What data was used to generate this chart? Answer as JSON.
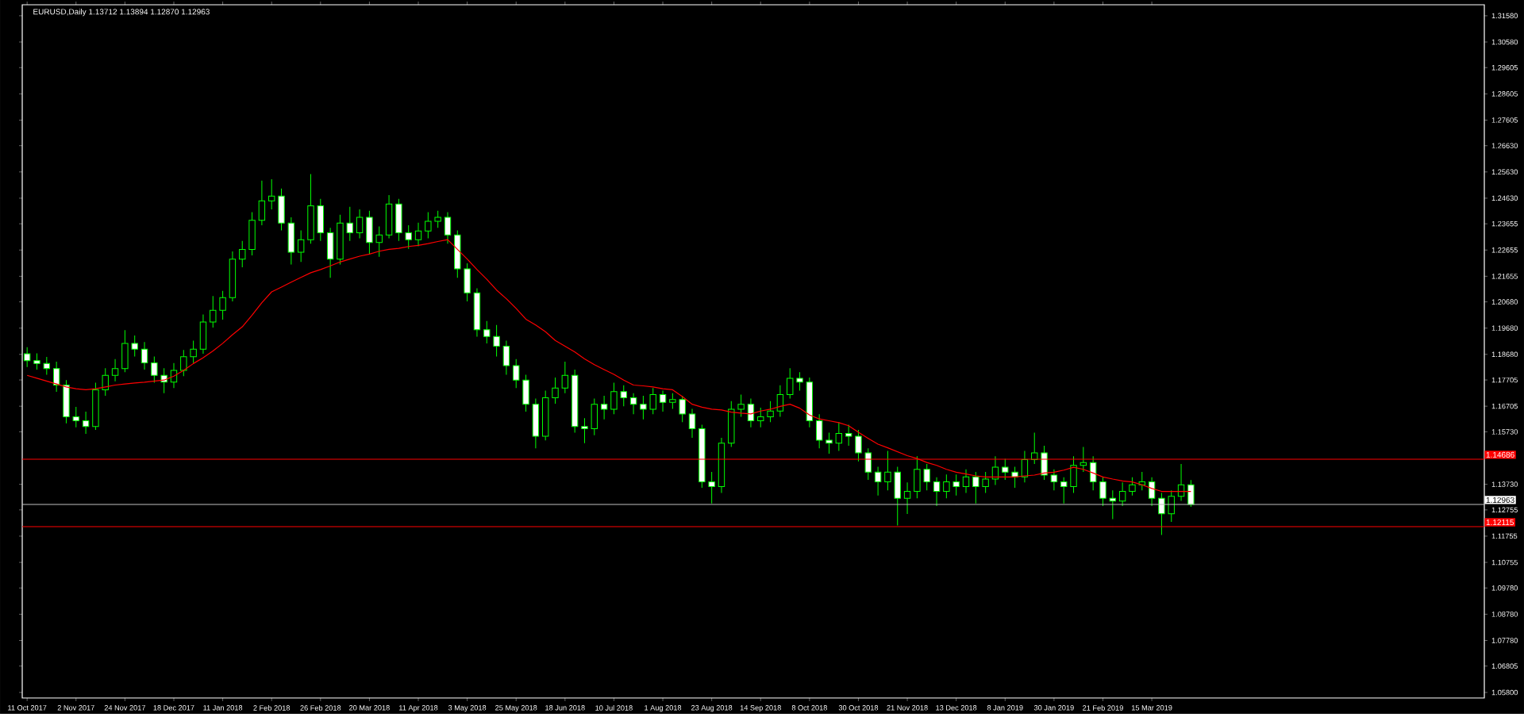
{
  "chart_data": {
    "type": "candlestick",
    "title": "EURUSD,Daily  1.13712 1.13894 1.12870 1.12963",
    "color": "#00ff00",
    "categories": [
      "11 Oct 2017",
      null,
      null,
      null,
      null,
      "2 Nov 2017",
      null,
      null,
      null,
      null,
      "24 Nov 2017",
      null,
      null,
      null,
      null,
      "18 Dec 2017",
      null,
      null,
      null,
      null,
      "11 Jan 2018",
      null,
      null,
      null,
      null,
      "2 Feb 2018",
      null,
      null,
      null,
      null,
      "26 Feb 2018",
      null,
      null,
      null,
      null,
      "20 Mar 2018",
      null,
      null,
      null,
      null,
      "11 Apr 2018",
      null,
      null,
      null,
      null,
      "3 May 2018",
      null,
      null,
      null,
      null,
      "25 May 2018",
      null,
      null,
      null,
      null,
      "18 Jun 2018",
      null,
      null,
      null,
      null,
      "10 Jul 2018",
      null,
      null,
      null,
      null,
      "1 Aug 2018",
      null,
      null,
      null,
      null,
      "23 Aug 2018",
      null,
      null,
      null,
      null,
      "14 Sep 2018",
      null,
      null,
      null,
      null,
      "8 Oct 2018",
      null,
      null,
      null,
      null,
      "30 Oct 2018",
      null,
      null,
      null,
      null,
      "21 Nov 2018",
      null,
      null,
      null,
      null,
      "13 Dec 2018",
      null,
      null,
      null,
      null,
      "8 Jan 2019",
      null,
      null,
      null,
      null,
      "30 Jan 2019",
      null,
      null,
      null,
      null,
      "21 Feb 2019",
      null,
      null,
      null,
      null,
      "15 Mar 2019",
      null,
      null,
      null,
      null
    ],
    "ohlc": [
      [
        1.187,
        1.1895,
        1.182,
        1.1844
      ],
      [
        1.1844,
        1.1872,
        1.181,
        1.1833
      ],
      [
        1.1833,
        1.1858,
        1.179,
        1.1814
      ],
      [
        1.1814,
        1.184,
        1.1725,
        1.1751
      ],
      [
        1.1751,
        1.177,
        1.1605,
        1.163
      ],
      [
        1.163,
        1.1668,
        1.159,
        1.1615
      ],
      [
        1.1615,
        1.165,
        1.1565,
        1.1593
      ],
      [
        1.1593,
        1.176,
        1.158,
        1.1733
      ],
      [
        1.1733,
        1.1815,
        1.171,
        1.1788
      ],
      [
        1.1788,
        1.185,
        1.1765,
        1.1814
      ],
      [
        1.1814,
        1.196,
        1.18,
        1.191
      ],
      [
        1.191,
        1.194,
        1.186,
        1.1888
      ],
      [
        1.1888,
        1.1915,
        1.181,
        1.1836
      ],
      [
        1.1836,
        1.186,
        1.176,
        1.1788
      ],
      [
        1.1788,
        1.1815,
        1.172,
        1.1762
      ],
      [
        1.1762,
        1.1835,
        1.174,
        1.1807
      ],
      [
        1.1807,
        1.1885,
        1.1785,
        1.1859
      ],
      [
        1.1859,
        1.192,
        1.1835,
        1.1888
      ],
      [
        1.1888,
        1.202,
        1.187,
        1.1991
      ],
      [
        1.1991,
        1.209,
        1.197,
        1.2036
      ],
      [
        1.2036,
        1.211,
        1.2,
        1.2084
      ],
      [
        1.2084,
        1.226,
        1.207,
        1.2231
      ],
      [
        1.2231,
        1.23,
        1.22,
        1.2268
      ],
      [
        1.2268,
        1.241,
        1.2245,
        1.2379
      ],
      [
        1.2379,
        1.253,
        1.236,
        1.2453
      ],
      [
        1.2453,
        1.2535,
        1.242,
        1.2471
      ],
      [
        1.2471,
        1.25,
        1.234,
        1.2368
      ],
      [
        1.2368,
        1.239,
        1.221,
        1.2257
      ],
      [
        1.2257,
        1.234,
        1.222,
        1.2305
      ],
      [
        1.2305,
        1.2555,
        1.229,
        1.2434
      ],
      [
        1.2434,
        1.246,
        1.23,
        1.2331
      ],
      [
        1.2331,
        1.235,
        1.216,
        1.2231
      ],
      [
        1.2231,
        1.24,
        1.221,
        1.2368
      ],
      [
        1.2368,
        1.243,
        1.23,
        1.2331
      ],
      [
        1.2331,
        1.242,
        1.231,
        1.239
      ],
      [
        1.239,
        1.2415,
        1.225,
        1.2294
      ],
      [
        1.2294,
        1.2355,
        1.224,
        1.2323
      ],
      [
        1.2323,
        1.2475,
        1.231,
        1.2441
      ],
      [
        1.2441,
        1.246,
        1.23,
        1.2331
      ],
      [
        1.2331,
        1.236,
        1.227,
        1.2305
      ],
      [
        1.2305,
        1.237,
        1.228,
        1.2338
      ],
      [
        1.2338,
        1.241,
        1.231,
        1.2375
      ],
      [
        1.2375,
        1.2415,
        1.235,
        1.239
      ],
      [
        1.239,
        1.241,
        1.229,
        1.2323
      ],
      [
        1.2323,
        1.234,
        1.216,
        1.2194
      ],
      [
        1.2194,
        1.2215,
        1.207,
        1.2102
      ],
      [
        1.2102,
        1.212,
        1.1935,
        1.1962
      ],
      [
        1.1962,
        1.1995,
        1.191,
        1.1936
      ],
      [
        1.1936,
        1.198,
        1.186,
        1.1899
      ],
      [
        1.1899,
        1.192,
        1.179,
        1.1825
      ],
      [
        1.1825,
        1.185,
        1.174,
        1.177
      ],
      [
        1.177,
        1.179,
        1.165,
        1.1678
      ],
      [
        1.1678,
        1.17,
        1.151,
        1.1556
      ],
      [
        1.1556,
        1.173,
        1.154,
        1.1703
      ],
      [
        1.1703,
        1.178,
        1.168,
        1.174
      ],
      [
        1.174,
        1.184,
        1.172,
        1.1788
      ],
      [
        1.1788,
        1.181,
        1.157,
        1.1593
      ],
      [
        1.1593,
        1.1625,
        1.153,
        1.1585
      ],
      [
        1.1585,
        1.17,
        1.156,
        1.1678
      ],
      [
        1.1678,
        1.171,
        1.162,
        1.1659
      ],
      [
        1.1659,
        1.176,
        1.164,
        1.1726
      ],
      [
        1.1726,
        1.175,
        1.167,
        1.1703
      ],
      [
        1.1703,
        1.172,
        1.164,
        1.1678
      ],
      [
        1.1678,
        1.171,
        1.162,
        1.1659
      ],
      [
        1.1659,
        1.174,
        1.164,
        1.1715
      ],
      [
        1.1715,
        1.173,
        1.165,
        1.1685
      ],
      [
        1.1685,
        1.172,
        1.166,
        1.1696
      ],
      [
        1.1696,
        1.171,
        1.161,
        1.1641
      ],
      [
        1.1641,
        1.166,
        1.155,
        1.1585
      ],
      [
        1.1585,
        1.16,
        1.136,
        1.1382
      ],
      [
        1.1382,
        1.142,
        1.13,
        1.1364
      ],
      [
        1.1364,
        1.155,
        1.134,
        1.153
      ],
      [
        1.153,
        1.169,
        1.1515,
        1.1659
      ],
      [
        1.1659,
        1.1715,
        1.163,
        1.1678
      ],
      [
        1.1678,
        1.17,
        1.159,
        1.1615
      ],
      [
        1.1615,
        1.1665,
        1.159,
        1.163
      ],
      [
        1.163,
        1.169,
        1.161,
        1.1652
      ],
      [
        1.1652,
        1.175,
        1.163,
        1.1715
      ],
      [
        1.1715,
        1.1815,
        1.17,
        1.1777
      ],
      [
        1.1777,
        1.18,
        1.173,
        1.1762
      ],
      [
        1.1762,
        1.178,
        1.159,
        1.1615
      ],
      [
        1.1615,
        1.164,
        1.151,
        1.1541
      ],
      [
        1.1541,
        1.157,
        1.149,
        1.153
      ],
      [
        1.153,
        1.161,
        1.15,
        1.1567
      ],
      [
        1.1567,
        1.16,
        1.152,
        1.1556
      ],
      [
        1.1556,
        1.158,
        1.146,
        1.1493
      ],
      [
        1.1493,
        1.151,
        1.139,
        1.1419
      ],
      [
        1.1419,
        1.144,
        1.133,
        1.1382
      ],
      [
        1.1382,
        1.15,
        1.135,
        1.1419
      ],
      [
        1.1419,
        1.144,
        1.1216,
        1.132
      ],
      [
        1.132,
        1.138,
        1.126,
        1.1346
      ],
      [
        1.1346,
        1.148,
        1.132,
        1.143
      ],
      [
        1.143,
        1.145,
        1.135,
        1.1382
      ],
      [
        1.1382,
        1.14,
        1.129,
        1.1346
      ],
      [
        1.1346,
        1.141,
        1.132,
        1.1382
      ],
      [
        1.1382,
        1.141,
        1.133,
        1.1364
      ],
      [
        1.1364,
        1.143,
        1.134,
        1.1401
      ],
      [
        1.1401,
        1.142,
        1.13,
        1.1364
      ],
      [
        1.1364,
        1.142,
        1.134,
        1.1393
      ],
      [
        1.1393,
        1.148,
        1.137,
        1.1438
      ],
      [
        1.1438,
        1.147,
        1.139,
        1.1419
      ],
      [
        1.1419,
        1.144,
        1.136,
        1.1401
      ],
      [
        1.1401,
        1.15,
        1.138,
        1.1467
      ],
      [
        1.1467,
        1.157,
        1.145,
        1.1493
      ],
      [
        1.1493,
        1.152,
        1.139,
        1.1408
      ],
      [
        1.1408,
        1.143,
        1.135,
        1.1382
      ],
      [
        1.1382,
        1.14,
        1.13,
        1.1364
      ],
      [
        1.1364,
        1.148,
        1.134,
        1.1445
      ],
      [
        1.1445,
        1.1515,
        1.142,
        1.1456
      ],
      [
        1.1456,
        1.148,
        1.135,
        1.1382
      ],
      [
        1.1382,
        1.14,
        1.129,
        1.132
      ],
      [
        1.132,
        1.135,
        1.124,
        1.1309
      ],
      [
        1.1309,
        1.138,
        1.129,
        1.1346
      ],
      [
        1.1346,
        1.14,
        1.133,
        1.1371
      ],
      [
        1.1371,
        1.142,
        1.135,
        1.1382
      ],
      [
        1.1382,
        1.14,
        1.129,
        1.132
      ],
      [
        1.132,
        1.134,
        1.118,
        1.1261
      ],
      [
        1.1261,
        1.135,
        1.123,
        1.1327
      ],
      [
        1.1327,
        1.145,
        1.131,
        1.1371
      ],
      [
        1.13712,
        1.13894,
        1.1287,
        1.12963
      ]
    ],
    "series": [
      {
        "type": "line",
        "color": "#ff0000",
        "values": [
          1.1788,
          1.1777,
          1.1766,
          1.1755,
          1.1744,
          1.1737,
          1.1733,
          1.1737,
          1.1744,
          1.1751,
          1.1755,
          1.1759,
          1.1762,
          1.1766,
          1.177,
          1.1785,
          1.1807,
          1.1833,
          1.1855,
          1.1881,
          1.191,
          1.1943,
          1.1973,
          1.2017,
          1.2065,
          1.2106,
          1.2124,
          1.2143,
          1.2161,
          1.2179,
          1.2191,
          1.2205,
          1.222,
          1.2231,
          1.2242,
          1.225,
          1.2261,
          1.2268,
          1.2272,
          1.2279,
          1.2283,
          1.229,
          1.2298,
          1.2305,
          1.2268,
          1.2231,
          1.2191,
          1.2154,
          1.2113,
          1.208,
          1.2043,
          1.2002,
          1.198,
          1.1954,
          1.1921,
          1.1899,
          1.1877,
          1.1851,
          1.1829,
          1.181,
          1.1792,
          1.177,
          1.1751,
          1.1748,
          1.1744,
          1.1737,
          1.1733,
          1.1707,
          1.1678,
          1.1667,
          1.1659,
          1.1656,
          1.1648,
          1.1644,
          1.1641,
          1.1652,
          1.1659,
          1.167,
          1.1678,
          1.1663,
          1.1637,
          1.1622,
          1.1615,
          1.1608,
          1.1596,
          1.1571,
          1.1548,
          1.1526,
          1.1512,
          1.1497,
          1.1482,
          1.1471,
          1.1456,
          1.1445,
          1.143,
          1.1419,
          1.1412,
          1.1405,
          1.1401,
          1.1401,
          1.1401,
          1.1401,
          1.1405,
          1.1408,
          1.1416,
          1.1419,
          1.1427,
          1.1438,
          1.143,
          1.1416,
          1.1401,
          1.1393,
          1.1386,
          1.1382,
          1.1371,
          1.1357,
          1.1346,
          1.1346,
          1.1346,
          1.1346
        ]
      }
    ],
    "ylim": [
      1.0559,
      1.32
    ],
    "yticks": [
      {
        "value": 1.3158,
        "label": "1.31580"
      },
      {
        "value": 1.3058,
        "label": "1.30580"
      },
      {
        "value": 1.29605,
        "label": "1.29605"
      },
      {
        "value": 1.28605,
        "label": "1.28605"
      },
      {
        "value": 1.27605,
        "label": "1.27605"
      },
      {
        "value": 1.2663,
        "label": "1.26630"
      },
      {
        "value": 1.2563,
        "label": "1.25630"
      },
      {
        "value": 1.2463,
        "label": "1.24630"
      },
      {
        "value": 1.23655,
        "label": "1.23655"
      },
      {
        "value": 1.22655,
        "label": "1.22655"
      },
      {
        "value": 1.21655,
        "label": "1.21655"
      },
      {
        "value": 1.2068,
        "label": "1.20680"
      },
      {
        "value": 1.1968,
        "label": "1.19680"
      },
      {
        "value": 1.1868,
        "label": "1.18680"
      },
      {
        "value": 1.17705,
        "label": "1.17705"
      },
      {
        "value": 1.16705,
        "label": "1.16705"
      },
      {
        "value": 1.1573,
        "label": "1.15730"
      },
      {
        "value": 1.1373,
        "label": "1.13730"
      },
      {
        "value": 1.12755,
        "label": "1.12755"
      },
      {
        "value": 1.11755,
        "label": "1.11755"
      },
      {
        "value": 1.10755,
        "label": "1.10755"
      },
      {
        "value": 1.0978,
        "label": "1.09780"
      },
      {
        "value": 1.0878,
        "label": "1.08780"
      },
      {
        "value": 1.0778,
        "label": "1.07780"
      },
      {
        "value": 1.06805,
        "label": "1.06805"
      },
      {
        "value": 1.058,
        "label": "1.05800"
      }
    ],
    "ref_lines": [
      {
        "axis": "y",
        "value": 1.14686,
        "label": "1.14686",
        "color": "#ff0000"
      },
      {
        "axis": "y",
        "value": 1.12963,
        "label": "1.12963",
        "color": "#c0c0c0"
      },
      {
        "axis": "y",
        "value": 1.12115,
        "label": "1.12115",
        "color": "#ff0000"
      }
    ]
  }
}
